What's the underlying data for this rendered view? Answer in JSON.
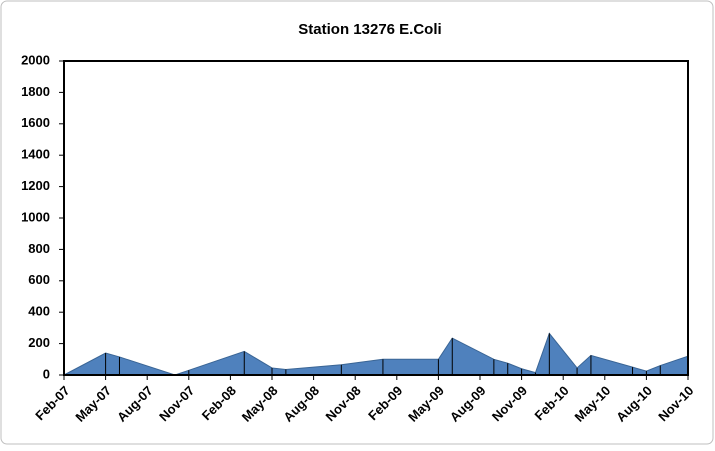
{
  "chart_data": {
    "type": "area",
    "title": "Station 13276 E.Coli",
    "x": [
      "2007-02",
      "2007-05",
      "2007-06",
      "2007-10",
      "2007-11",
      "2008-03",
      "2008-05",
      "2008-06",
      "2008-10",
      "2009-01",
      "2009-05",
      "2009-06",
      "2009-09",
      "2009-10",
      "2009-11",
      "2009-12",
      "2010-01",
      "2010-03",
      "2010-04",
      "2010-07",
      "2010-08",
      "2010-09",
      "2010-11"
    ],
    "values": [
      0,
      140,
      115,
      0,
      30,
      150,
      45,
      35,
      65,
      100,
      100,
      235,
      100,
      75,
      40,
      15,
      265,
      45,
      125,
      50,
      25,
      60,
      120
    ],
    "color": "#4f81bd",
    "xlim": [
      "2007-02",
      "2010-11"
    ],
    "xticks": [
      {
        "value": "2007-02",
        "label": "Feb-07"
      },
      {
        "value": "2007-05",
        "label": "May-07"
      },
      {
        "value": "2007-08",
        "label": "Aug-07"
      },
      {
        "value": "2007-11",
        "label": "Nov-07"
      },
      {
        "value": "2008-02",
        "label": "Feb-08"
      },
      {
        "value": "2008-05",
        "label": "May-08"
      },
      {
        "value": "2008-08",
        "label": "Aug-08"
      },
      {
        "value": "2008-11",
        "label": "Nov-08"
      },
      {
        "value": "2009-02",
        "label": "Feb-09"
      },
      {
        "value": "2009-05",
        "label": "May-09"
      },
      {
        "value": "2009-08",
        "label": "Aug-09"
      },
      {
        "value": "2009-11",
        "label": "Nov-09"
      },
      {
        "value": "2010-02",
        "label": "Feb-10"
      },
      {
        "value": "2010-05",
        "label": "May-10"
      },
      {
        "value": "2010-08",
        "label": "Aug-10"
      },
      {
        "value": "2010-11",
        "label": "Nov-10"
      }
    ],
    "ylim": [
      0,
      2000
    ],
    "yticks": [
      0,
      200,
      400,
      600,
      800,
      1000,
      1200,
      1400,
      1600,
      1800,
      2000
    ],
    "grid": false
  }
}
